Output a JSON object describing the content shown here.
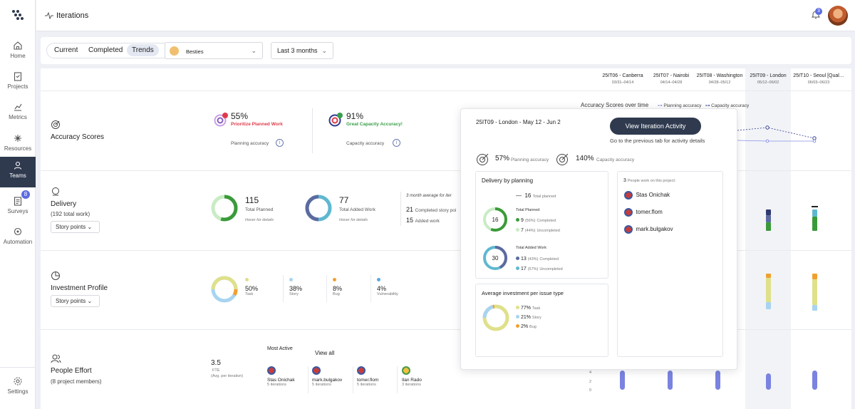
{
  "sidebar": {
    "items": [
      {
        "label": "Home",
        "icon": "home-icon"
      },
      {
        "label": "Projects",
        "icon": "clipboard-icon"
      },
      {
        "label": "Metrics",
        "icon": "chart-icon"
      },
      {
        "label": "Resources",
        "icon": "network-icon"
      },
      {
        "label": "Teams",
        "icon": "teams-icon"
      },
      {
        "label": "Surveys",
        "icon": "survey-icon",
        "badge": "8"
      },
      {
        "label": "Automation",
        "icon": "automation-icon"
      }
    ],
    "settings_label": "Settings"
  },
  "topbar": {
    "title": "Iterations",
    "notification_count": "3"
  },
  "filters": {
    "tabs": [
      "Current",
      "Completed",
      "Trends"
    ],
    "active_tab": "Trends",
    "team": "Besties",
    "range": "Last 3 months"
  },
  "iterations": [
    {
      "name": "25IT06 - Canberra",
      "dates": "03/31–04/14"
    },
    {
      "name": "25IT07 - Nairobi",
      "dates": "04/14–04/28"
    },
    {
      "name": "25IT08 - Washington",
      "dates": "04/28–05/12"
    },
    {
      "name": "25IT09 - London",
      "dates": "05/12–06/02"
    },
    {
      "name": "25IT10 - Seoul [Qual…",
      "dates": "06/03–06/23"
    }
  ],
  "accuracy": {
    "title": "Accuracy Scores",
    "planning": {
      "value": "55%",
      "note": "Prioritize Planned Work",
      "label": "Planning accuracy"
    },
    "capacity": {
      "value": "91%",
      "note": "Great Capacity Accuracy!",
      "label": "Capacity accuracy"
    },
    "chart_title": "Accuracy Scores over time",
    "legend_planning": "Planning accuracy",
    "legend_capacity": "Capacity accuracy"
  },
  "delivery": {
    "title": "Delivery",
    "subtitle": "(192 total work)",
    "select": "Story points",
    "total_planned": "115",
    "total_planned_label": "Total Planned",
    "total_added": "77",
    "total_added_label": "Total Added Work",
    "hover_hint": "Hover for details",
    "avg_label": "3 month average for iter",
    "completed_story": "21",
    "completed_story_label": "Completed story poi",
    "added_work": "15",
    "added_work_label": "Added work"
  },
  "investment": {
    "title": "Investment Profile",
    "select": "Story points",
    "items": [
      {
        "value": "50%",
        "label": "Task",
        "color": "#dfe08a"
      },
      {
        "value": "38%",
        "label": "Story",
        "color": "#a8d4f0"
      },
      {
        "value": "8%",
        "label": "Bug",
        "color": "#f0a030"
      },
      {
        "value": "4%",
        "label": "Vulnerability",
        "color": "#5aa8e0"
      }
    ]
  },
  "people": {
    "title": "People Effort",
    "subtitle": "(8 project members)",
    "fte": "3.5",
    "fte_label": "FTE",
    "fte_sub": "(Avg. per iteration)",
    "most_active": "Most Active",
    "view_all": "View all",
    "members": [
      {
        "name": "Stas Onichak",
        "iterations": "5 iterations"
      },
      {
        "name": "mark.bulgakov",
        "iterations": "5 iterations"
      },
      {
        "name": "tomer.flom",
        "iterations": "5 iterations"
      },
      {
        "name": "Ilan Rado",
        "iterations": "3 iterations"
      }
    ],
    "axis": [
      "4",
      "2",
      "0"
    ]
  },
  "popup": {
    "title": "25IT09 - London - May 12 - Jun 2",
    "button": "View Iteration Activity",
    "hint": "Go to the previous tab for activity details",
    "planning_value": "57%",
    "planning_label": "Planning accuracy",
    "capacity_value": "140%",
    "capacity_label": "Capacity accuracy",
    "delivery_title": "Delivery by planning",
    "total_planned": "16",
    "total_planned_label": "Total planned",
    "planned_section": "Total Planned",
    "planned_center": "16",
    "planned_completed": "9",
    "planned_completed_pct": "(56%)",
    "planned_uncompleted": "7",
    "planned_uncompleted_pct": "(44%)",
    "completed_label": "Completed",
    "uncompleted_label": "Uncompleted",
    "added_section": "Total Added Work",
    "added_center": "30",
    "added_completed": "13",
    "added_completed_pct": "(43%)",
    "added_uncompleted": "17",
    "added_uncompleted_pct": "(57%)",
    "people_count": "3",
    "people_label": "People work on this project:",
    "people": [
      "Stas Onichak",
      "tomer.flom",
      "mark.bulgakov"
    ],
    "investment_title": "Average investment per issue type",
    "investment": [
      {
        "value": "77%",
        "label": "Task",
        "color": "#dfe08a"
      },
      {
        "value": "21%",
        "label": "Story",
        "color": "#a8d4f0"
      },
      {
        "value": "2%",
        "label": "Bug",
        "color": "#f0a030"
      }
    ]
  }
}
